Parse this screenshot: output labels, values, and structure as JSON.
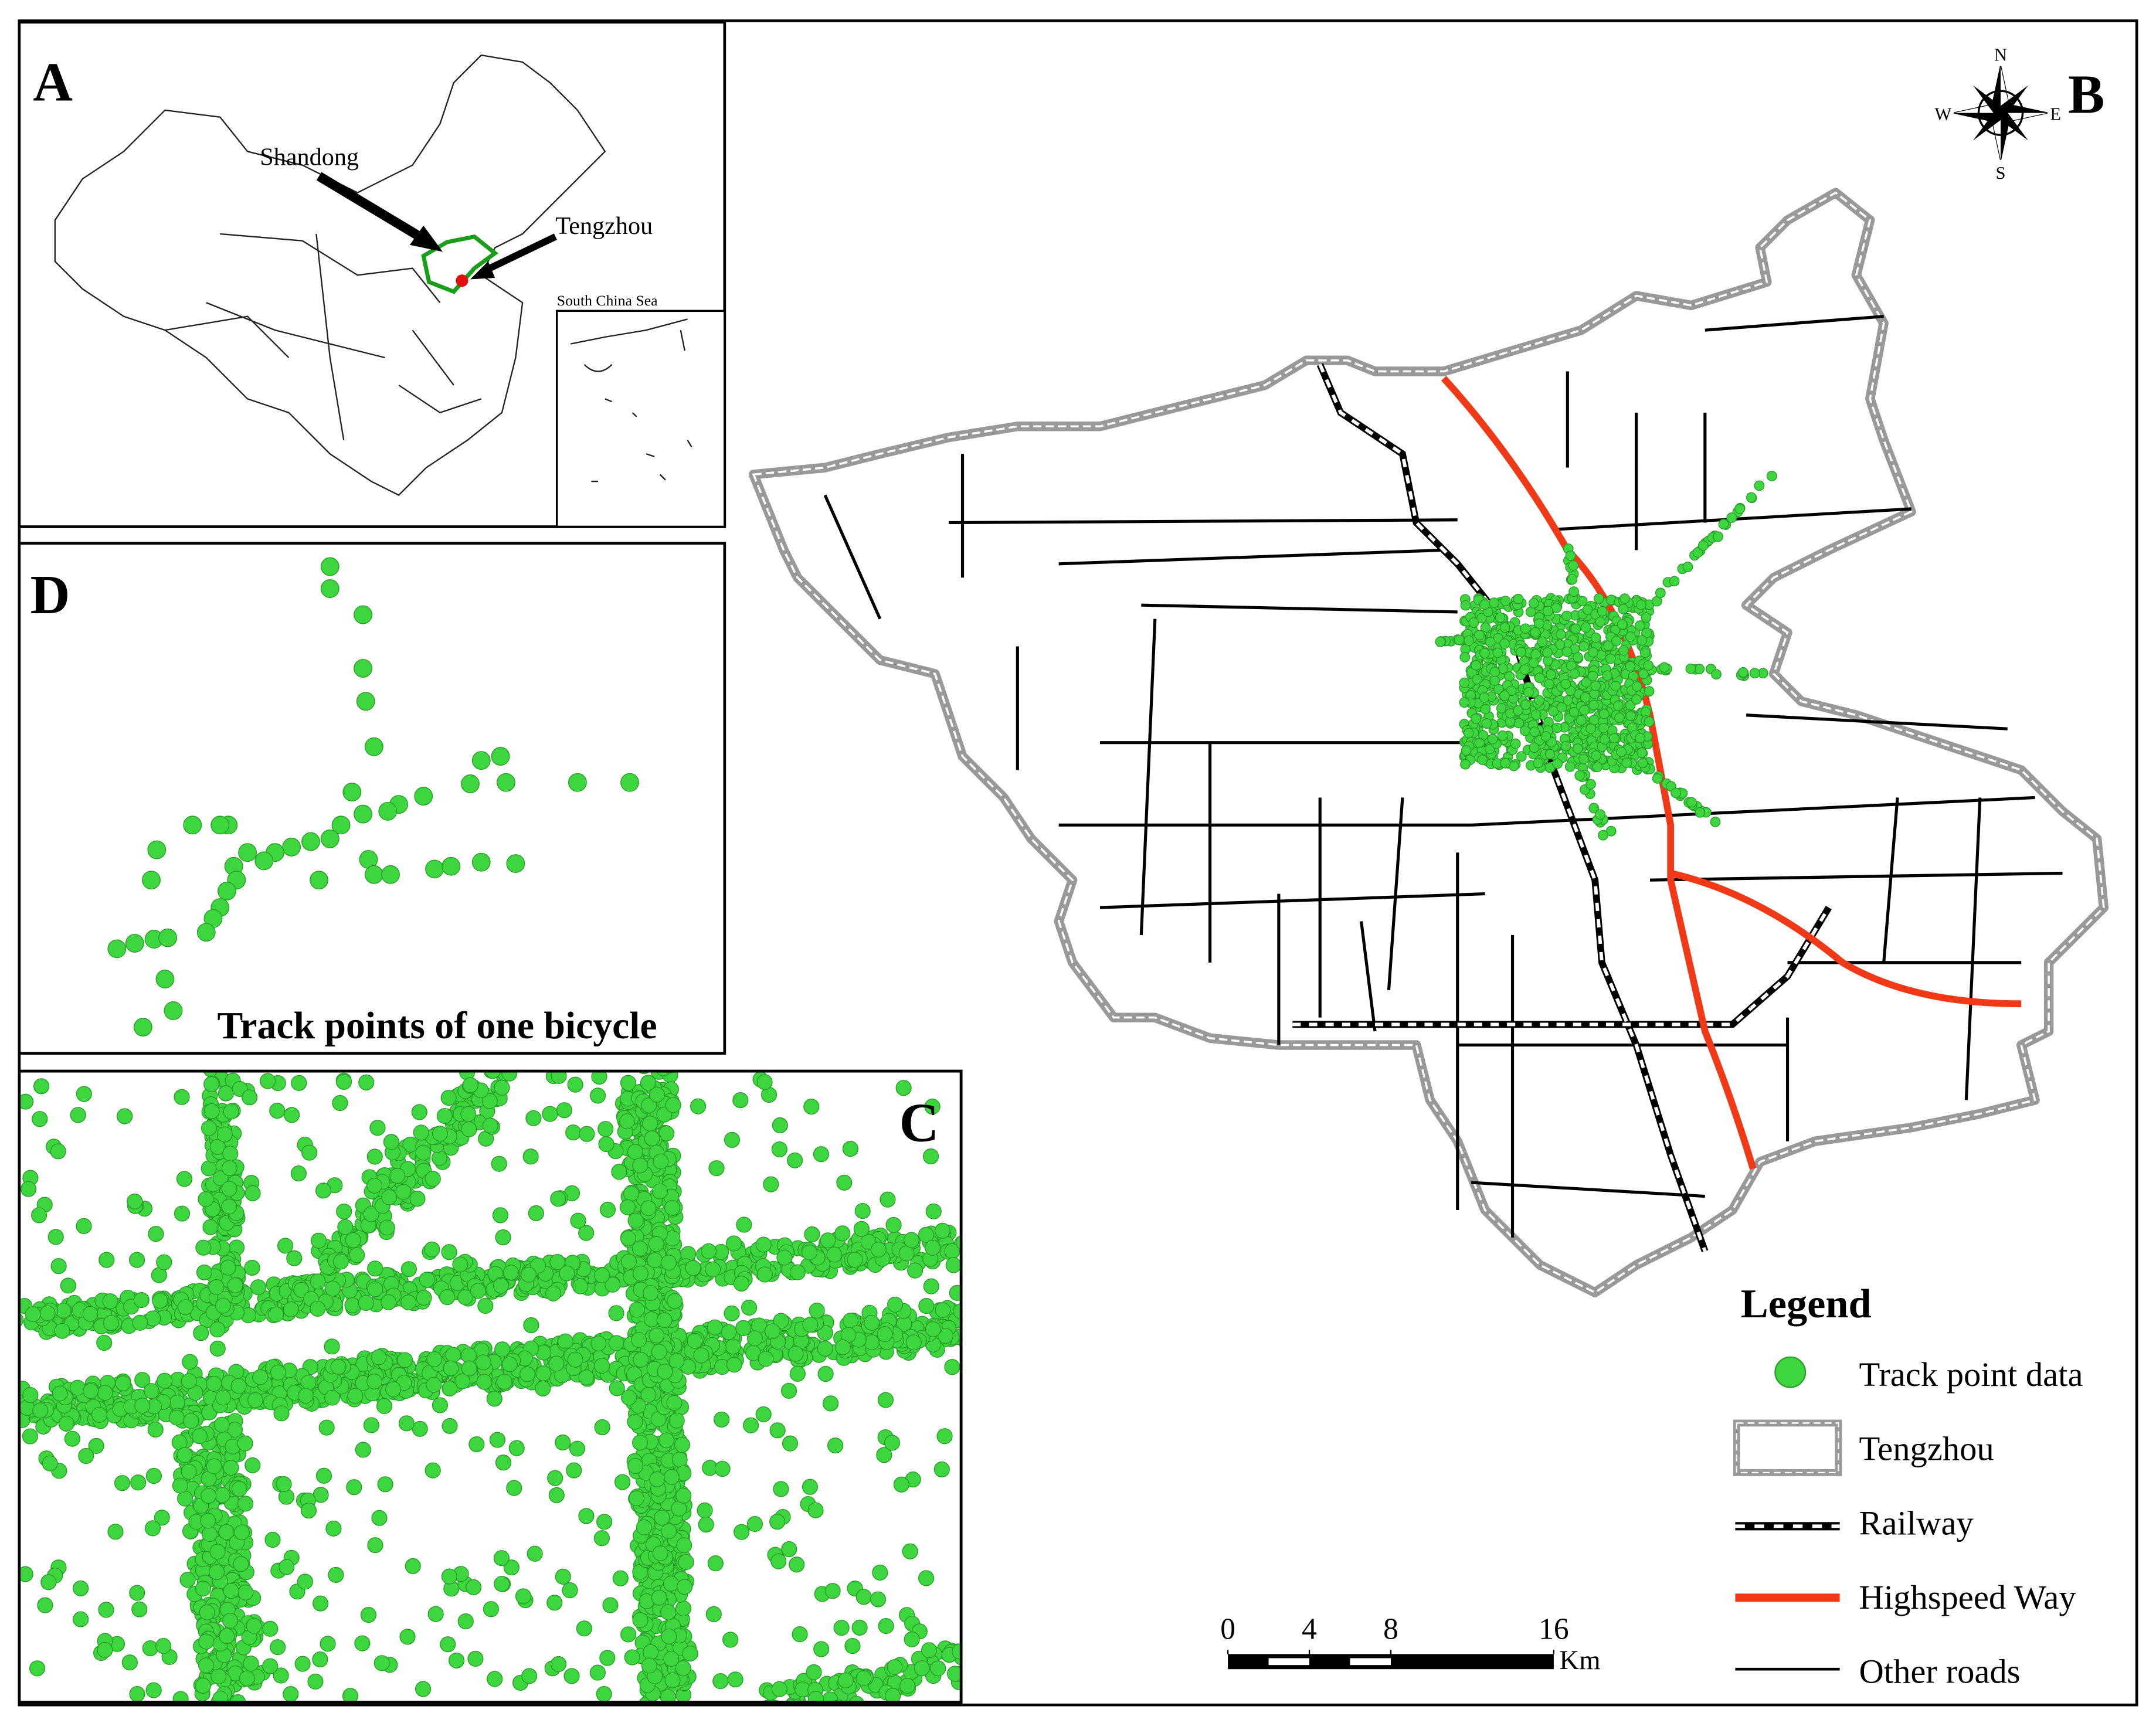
{
  "panels": {
    "a": {
      "label": "A",
      "shandong": "Shandong",
      "tengzhou": "Tengzhou",
      "inset": "South China Sea"
    },
    "b": {
      "label": "B"
    },
    "c": {
      "label": "C"
    },
    "d": {
      "label": "D",
      "caption": "Track points of one bicycle"
    }
  },
  "compass": {
    "n": "N",
    "s": "S",
    "e": "E",
    "w": "W"
  },
  "legend": {
    "title": "Legend",
    "items": [
      "Track point data",
      "Tengzhou",
      "Railway",
      "Highspeed Way",
      "Other roads"
    ]
  },
  "scale_bar": {
    "ticks": [
      0,
      4,
      8,
      16
    ],
    "unit": "Km"
  }
}
